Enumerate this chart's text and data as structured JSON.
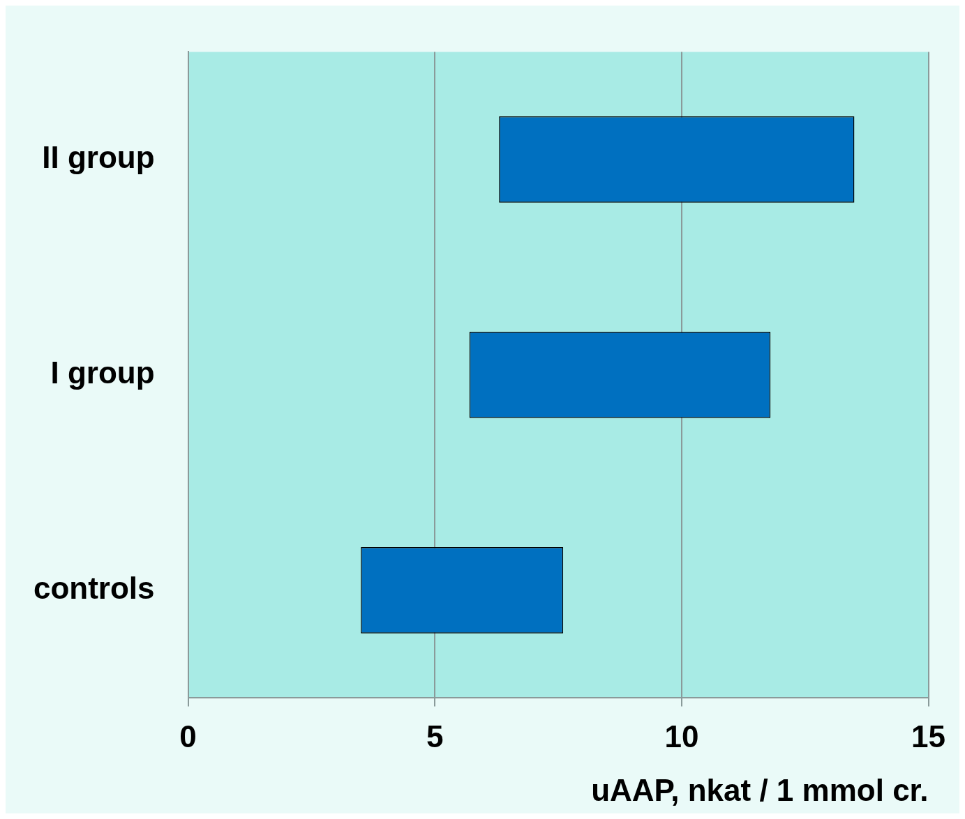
{
  "chart_data": {
    "type": "bar",
    "orientation": "horizontal",
    "xlabel": "uAAP, nkat / 1 mmol cr.",
    "categories": [
      "II group",
      "I group",
      "controls"
    ],
    "values": [
      7.2,
      6.1,
      4.1
    ],
    "base": [
      6.3,
      5.7,
      3.5
    ],
    "color": "#0070c0",
    "xlim": [
      0,
      15
    ],
    "xticks": [
      0,
      5,
      10,
      15
    ],
    "grid": "x",
    "legend": false
  }
}
